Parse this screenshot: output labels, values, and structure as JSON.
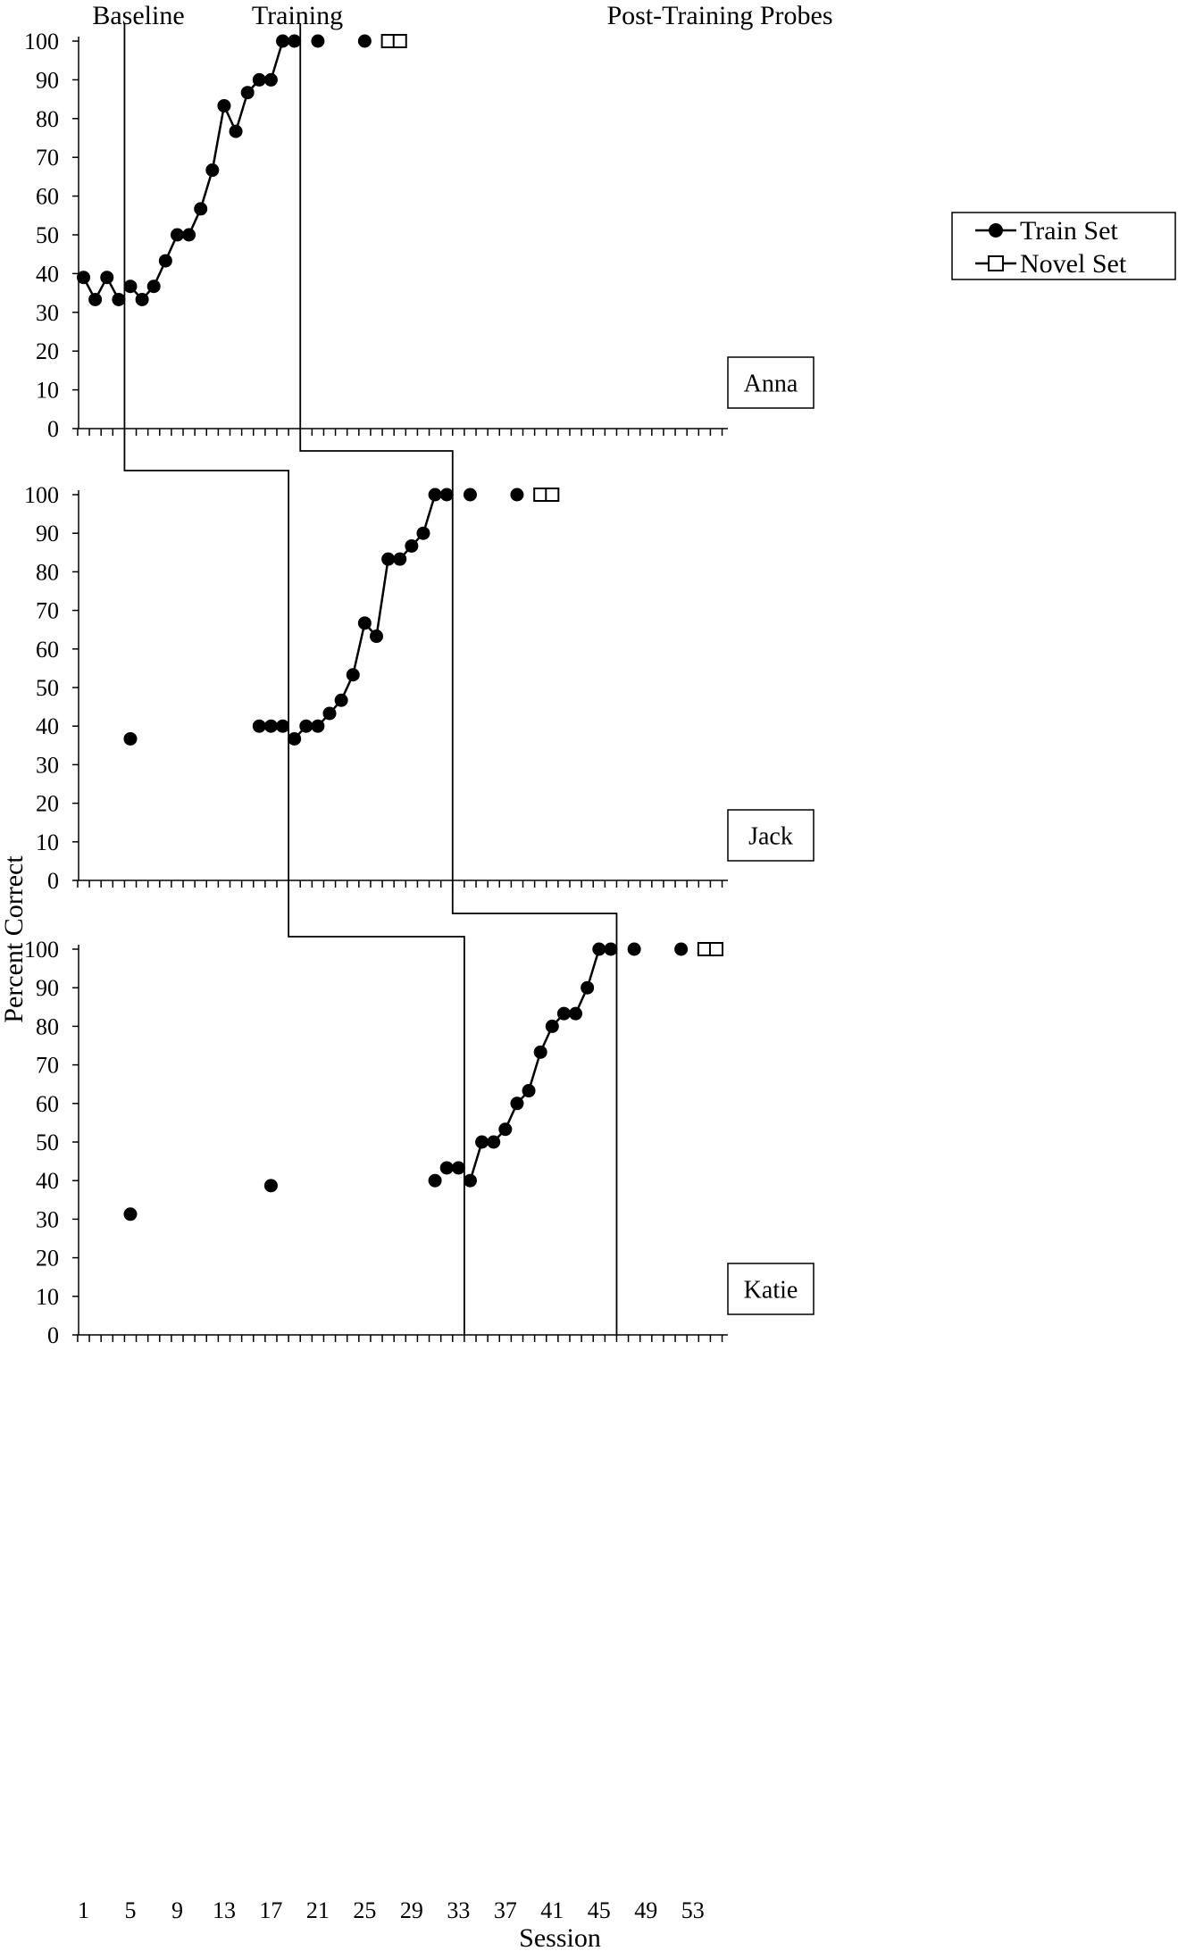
{
  "phase_labels": {
    "baseline": "Baseline",
    "training": "Training",
    "post_training": "Post-Training Probes"
  },
  "y_axis_label": "Percent Correct",
  "x_axis_label": "Session",
  "legend": {
    "train": "Train Set",
    "novel": "Novel Set"
  },
  "colors": {
    "ink": "#000000",
    "background": "#ffffff"
  },
  "chart_data": {
    "type": "scatter",
    "description_style": "multiple-baseline single-subject design",
    "xlabel": "Session",
    "ylabel": "Percent Correct",
    "xlim": [
      1,
      55
    ],
    "ylim": [
      0,
      100
    ],
    "x_ticks": [
      1,
      5,
      9,
      13,
      17,
      21,
      25,
      29,
      33,
      37,
      41,
      45,
      49,
      53
    ],
    "y_ticks": [
      0,
      10,
      20,
      30,
      40,
      50,
      60,
      70,
      80,
      90,
      100
    ],
    "series_names": [
      "Train Set",
      "Novel Set"
    ],
    "participants": [
      {
        "name": "Anna",
        "phase_changes": [
          4.5,
          19.5
        ],
        "train_points": [
          [
            1,
            39
          ],
          [
            2,
            33.3
          ],
          [
            3,
            39
          ],
          [
            4,
            33.3
          ],
          [
            5,
            36.7
          ],
          [
            6,
            33.3
          ],
          [
            7,
            36.7
          ],
          [
            8,
            43.3
          ],
          [
            9,
            50
          ],
          [
            10,
            50
          ],
          [
            11,
            56.7
          ],
          [
            12,
            66.7
          ],
          [
            13,
            83.3
          ],
          [
            14,
            76.7
          ],
          [
            15,
            86.7
          ],
          [
            16,
            90
          ],
          [
            17,
            90
          ],
          [
            18,
            100
          ],
          [
            19,
            100
          ],
          [
            21,
            100
          ],
          [
            25,
            100
          ]
        ],
        "train_lines": [
          [
            1,
            2,
            3,
            4
          ],
          [
            5,
            6,
            7,
            8,
            9,
            10,
            11,
            12,
            13,
            14,
            15,
            16,
            17,
            18,
            19
          ]
        ],
        "novel_points": [
          [
            27,
            100
          ],
          [
            28,
            100
          ]
        ]
      },
      {
        "name": "Jack",
        "phase_changes": [
          18.5,
          32.5
        ],
        "train_points": [
          [
            5,
            36.7
          ],
          [
            16,
            40
          ],
          [
            17,
            40
          ],
          [
            18,
            40
          ],
          [
            19,
            36.7
          ],
          [
            20,
            40
          ],
          [
            21,
            40
          ],
          [
            22,
            43.3
          ],
          [
            23,
            46.7
          ],
          [
            24,
            53.3
          ],
          [
            25,
            66.7
          ],
          [
            26,
            63.3
          ],
          [
            27,
            83.3
          ],
          [
            28,
            83.3
          ],
          [
            29,
            86.7
          ],
          [
            30,
            90
          ],
          [
            31,
            100
          ],
          [
            32,
            100
          ],
          [
            34,
            100
          ],
          [
            38,
            100
          ]
        ],
        "train_lines": [
          [
            19,
            20,
            21,
            22,
            23,
            24,
            25,
            26,
            27,
            28,
            29,
            30,
            31,
            32
          ]
        ],
        "novel_points": [
          [
            40,
            100
          ],
          [
            41,
            100
          ]
        ]
      },
      {
        "name": "Katie",
        "phase_changes": [
          33.5,
          46.5
        ],
        "train_points": [
          [
            5,
            31.3
          ],
          [
            17,
            38.7
          ],
          [
            31,
            40
          ],
          [
            32,
            43.3
          ],
          [
            33,
            43.3
          ],
          [
            34,
            40
          ],
          [
            35,
            50
          ],
          [
            36,
            50
          ],
          [
            37,
            53.3
          ],
          [
            38,
            60
          ],
          [
            39,
            63.3
          ],
          [
            40,
            73.3
          ],
          [
            41,
            80
          ],
          [
            42,
            83.3
          ],
          [
            43,
            83.3
          ],
          [
            44,
            90
          ],
          [
            45,
            100
          ],
          [
            46,
            100
          ],
          [
            48,
            100
          ],
          [
            52,
            100
          ]
        ],
        "train_lines": [
          [
            34,
            35,
            36,
            37,
            38,
            39,
            40,
            41,
            42,
            43,
            44,
            45,
            46
          ]
        ],
        "novel_points": [
          [
            54,
            100
          ],
          [
            55,
            100
          ]
        ]
      }
    ]
  }
}
